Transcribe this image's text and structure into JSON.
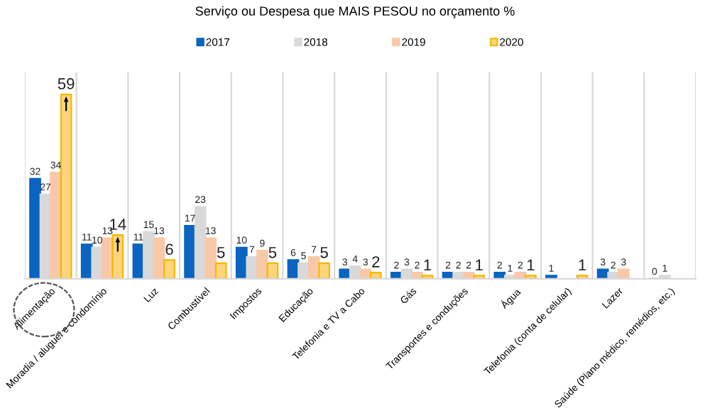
{
  "chart_data": {
    "type": "bar",
    "title": "Serviço ou Despesa que MAIS PESOU no orçamento %",
    "categories": [
      "Alimentação",
      "Moradia / aluguel e condomínio",
      "Luz",
      "Combustível",
      "Impostos",
      "Educação",
      "Telefonia e TV a Cabo",
      "Gás",
      "Transportes e conduções",
      "Água",
      "Telefonia (conta de celular)",
      "Lazer",
      "Saúde (Plano médico, remédios, etc.)"
    ],
    "series": [
      {
        "name": "2017",
        "color": "#0a64c0",
        "values": [
          32,
          11,
          11,
          17,
          10,
          6,
          3,
          2,
          2,
          2,
          1,
          3,
          0
        ]
      },
      {
        "name": "2018",
        "color": "#d9d9d9",
        "values": [
          27,
          10,
          15,
          23,
          7,
          5,
          4,
          3,
          2,
          1,
          null,
          2,
          1
        ]
      },
      {
        "name": "2019",
        "color": "#f8c9a8",
        "values": [
          34,
          13,
          13,
          13,
          9,
          7,
          3,
          2,
          2,
          2,
          null,
          3,
          null
        ]
      },
      {
        "name": "2020",
        "color": "#fdd57e",
        "values": [
          59,
          14,
          6,
          5,
          5,
          5,
          2,
          1,
          1,
          1,
          1,
          null,
          null
        ]
      }
    ],
    "data_labels": true,
    "legend": "top",
    "grid": "x"
  }
}
